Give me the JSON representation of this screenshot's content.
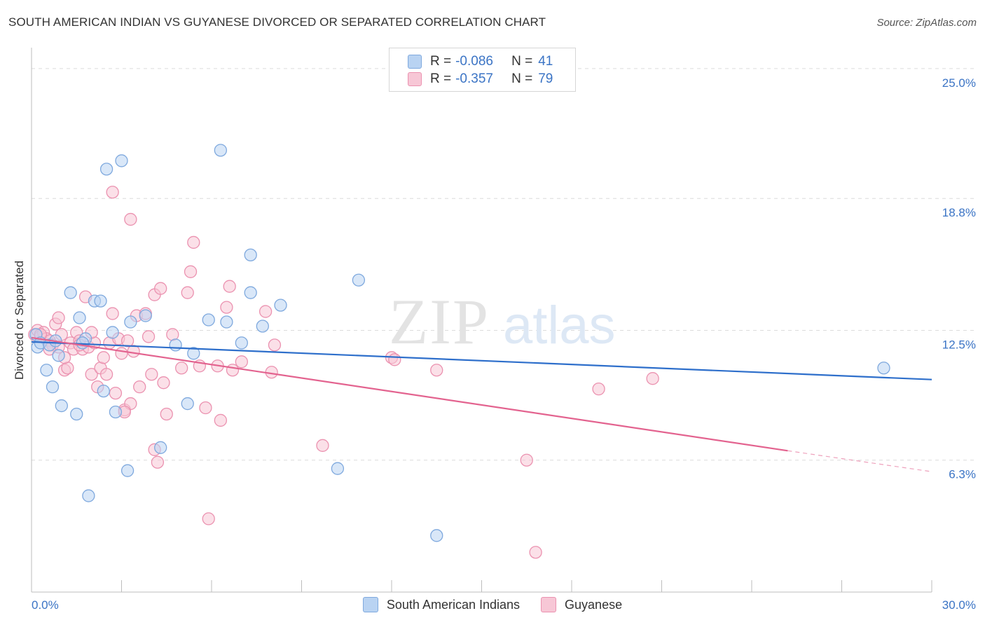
{
  "header": {
    "title": "SOUTH AMERICAN INDIAN VS GUYANESE DIVORCED OR SEPARATED CORRELATION CHART",
    "source": "Source: ZipAtlas.com"
  },
  "legend": {
    "rows": [
      {
        "r_label": "R =",
        "r_value": "-0.086",
        "n_label": "N =",
        "n_value": "41"
      },
      {
        "r_label": "R =",
        "r_value": "-0.357",
        "n_label": "N =",
        "n_value": "79"
      }
    ]
  },
  "watermark": {
    "zip": "ZIP",
    "atlas": "atlas"
  },
  "colors": {
    "blue_fill": "#b9d3f2",
    "blue_stroke": "#7fa9de",
    "blue_line": "#2e6fcb",
    "pink_fill": "#f7c7d6",
    "pink_stroke": "#eb92b0",
    "pink_line": "#e3638f",
    "tick_label": "#3b74c5",
    "grid": "#dcdcdc"
  },
  "chart_data": {
    "type": "scatter",
    "title": "SOUTH AMERICAN INDIAN VS GUYANESE DIVORCED OR SEPARATED CORRELATION CHART",
    "ylabel": "Divorced or Separated",
    "xlabel": "",
    "xlim": [
      0,
      30
    ],
    "ylim": [
      0,
      25.6
    ],
    "x_tick_labels": [
      "0.0%",
      "30.0%"
    ],
    "y_ticks": [
      6.3,
      12.5,
      18.8,
      25.0
    ],
    "y_tick_labels": [
      "6.3%",
      "12.5%",
      "18.8%",
      "25.0%"
    ],
    "grid": true,
    "series": [
      {
        "name": "South American Indians",
        "color": "#7fa9de",
        "points": [
          [
            0.15,
            12.3
          ],
          [
            0.2,
            11.7
          ],
          [
            0.3,
            11.9
          ],
          [
            0.5,
            10.6
          ],
          [
            0.6,
            11.8
          ],
          [
            0.7,
            9.8
          ],
          [
            0.9,
            11.3
          ],
          [
            1.0,
            8.9
          ],
          [
            1.3,
            14.3
          ],
          [
            1.5,
            8.5
          ],
          [
            1.6,
            13.1
          ],
          [
            1.8,
            12.1
          ],
          [
            2.1,
            13.9
          ],
          [
            2.3,
            13.9
          ],
          [
            2.4,
            9.6
          ],
          [
            2.5,
            20.2
          ],
          [
            2.7,
            12.4
          ],
          [
            2.8,
            8.6
          ],
          [
            3.0,
            20.6
          ],
          [
            3.2,
            5.8
          ],
          [
            3.3,
            12.9
          ],
          [
            3.8,
            13.2
          ],
          [
            4.3,
            6.9
          ],
          [
            4.8,
            11.8
          ],
          [
            5.2,
            9.0
          ],
          [
            5.4,
            11.4
          ],
          [
            5.9,
            13.0
          ],
          [
            6.3,
            21.1
          ],
          [
            6.5,
            12.9
          ],
          [
            7.0,
            11.9
          ],
          [
            7.3,
            16.1
          ],
          [
            7.3,
            14.3
          ],
          [
            7.7,
            12.7
          ],
          [
            8.3,
            13.7
          ],
          [
            10.9,
            14.9
          ],
          [
            1.9,
            4.6
          ],
          [
            10.2,
            5.9
          ],
          [
            13.5,
            2.7
          ],
          [
            28.4,
            10.7
          ],
          [
            0.8,
            12.0
          ],
          [
            1.7,
            11.9
          ]
        ],
        "trend": {
          "x": [
            0,
            30
          ],
          "y": [
            11.95,
            10.15
          ]
        }
      },
      {
        "name": "Guyanese",
        "color": "#eb92b0",
        "points": [
          [
            0.1,
            12.3
          ],
          [
            0.2,
            12.5
          ],
          [
            0.3,
            12.2
          ],
          [
            0.4,
            12.4
          ],
          [
            0.5,
            12.1
          ],
          [
            0.6,
            12.0
          ],
          [
            0.7,
            11.8
          ],
          [
            0.8,
            12.8
          ],
          [
            0.9,
            13.1
          ],
          [
            1.0,
            12.3
          ],
          [
            1.1,
            10.6
          ],
          [
            1.2,
            10.7
          ],
          [
            1.3,
            11.9
          ],
          [
            1.4,
            11.6
          ],
          [
            1.5,
            12.4
          ],
          [
            1.6,
            12.0
          ],
          [
            1.7,
            11.6
          ],
          [
            1.8,
            14.1
          ],
          [
            1.9,
            11.7
          ],
          [
            2.0,
            10.4
          ],
          [
            2.1,
            11.9
          ],
          [
            2.2,
            9.8
          ],
          [
            2.3,
            10.7
          ],
          [
            2.4,
            11.2
          ],
          [
            2.5,
            10.4
          ],
          [
            2.6,
            11.9
          ],
          [
            2.7,
            13.3
          ],
          [
            2.8,
            9.5
          ],
          [
            2.9,
            12.1
          ],
          [
            3.0,
            11.4
          ],
          [
            3.1,
            8.7
          ],
          [
            3.2,
            12.0
          ],
          [
            3.3,
            9.0
          ],
          [
            3.4,
            11.5
          ],
          [
            3.5,
            13.2
          ],
          [
            3.6,
            9.8
          ],
          [
            3.8,
            13.3
          ],
          [
            3.9,
            12.2
          ],
          [
            4.0,
            10.4
          ],
          [
            4.1,
            14.2
          ],
          [
            4.2,
            6.2
          ],
          [
            4.3,
            14.5
          ],
          [
            4.4,
            10.0
          ],
          [
            4.5,
            8.5
          ],
          [
            4.7,
            12.3
          ],
          [
            5.0,
            10.7
          ],
          [
            5.2,
            14.3
          ],
          [
            5.3,
            15.3
          ],
          [
            5.4,
            16.7
          ],
          [
            5.6,
            10.8
          ],
          [
            5.8,
            8.8
          ],
          [
            5.9,
            3.5
          ],
          [
            6.2,
            10.8
          ],
          [
            6.3,
            8.2
          ],
          [
            6.5,
            13.6
          ],
          [
            6.6,
            14.6
          ],
          [
            6.7,
            10.6
          ],
          [
            7.0,
            11.0
          ],
          [
            7.8,
            13.4
          ],
          [
            8.0,
            10.5
          ],
          [
            8.1,
            11.8
          ],
          [
            9.7,
            7.0
          ],
          [
            12.0,
            11.2
          ],
          [
            12.1,
            11.1
          ],
          [
            13.5,
            10.6
          ],
          [
            16.5,
            6.3
          ],
          [
            18.9,
            9.7
          ],
          [
            20.7,
            10.2
          ],
          [
            16.8,
            1.9
          ],
          [
            2.7,
            19.1
          ],
          [
            3.3,
            17.8
          ],
          [
            1.1,
            11.2
          ],
          [
            0.9,
            11.7
          ],
          [
            1.6,
            11.8
          ],
          [
            2.0,
            12.4
          ],
          [
            4.1,
            6.8
          ],
          [
            0.3,
            12.3
          ],
          [
            0.6,
            11.6
          ],
          [
            3.1,
            8.6
          ]
        ],
        "trend": {
          "x": [
            0,
            25.2
          ],
          "y": [
            12.15,
            6.75
          ]
        },
        "trend_dashed": {
          "x": [
            25.2,
            30
          ],
          "y": [
            6.75,
            5.75
          ]
        }
      }
    ],
    "legend_position": "top-center"
  }
}
